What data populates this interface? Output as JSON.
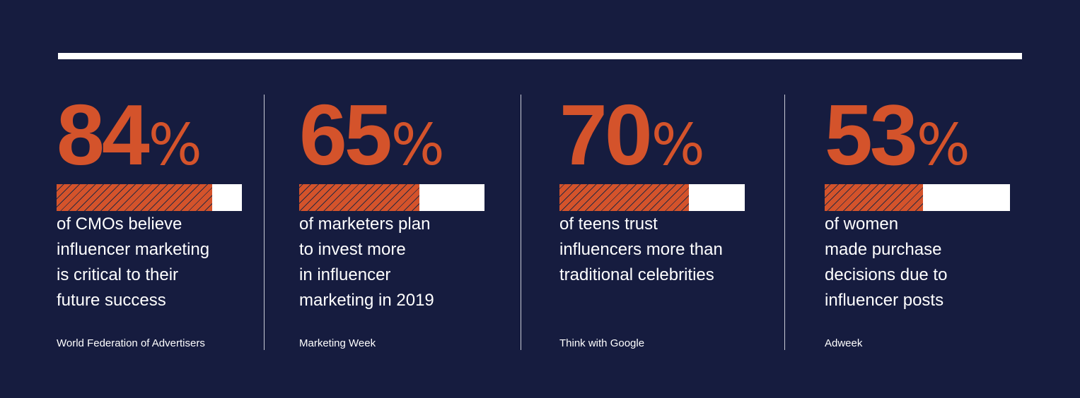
{
  "stats": [
    {
      "value": 84,
      "number": "84",
      "unit": "%",
      "description": "of CMOs believe\ninfluencer marketing\nis critical to their\nfuture success",
      "source": "World Federation of Advertisers"
    },
    {
      "value": 65,
      "number": "65",
      "unit": "%",
      "description": "of marketers plan\nto invest more\nin influencer\nmarketing in 2019",
      "source": "Marketing Week"
    },
    {
      "value": 70,
      "number": "70",
      "unit": "%",
      "description": "of teens trust\ninfluencers more than\ntraditional celebrities",
      "source": "Think with Google"
    },
    {
      "value": 53,
      "number": "53",
      "unit": "%",
      "description": "of women\nmade purchase\ndecisions due to\ninfluencer posts",
      "source": "Adweek"
    }
  ],
  "colors": {
    "background": "#161c3f",
    "accent": "#d4532b",
    "text": "#ffffff"
  }
}
